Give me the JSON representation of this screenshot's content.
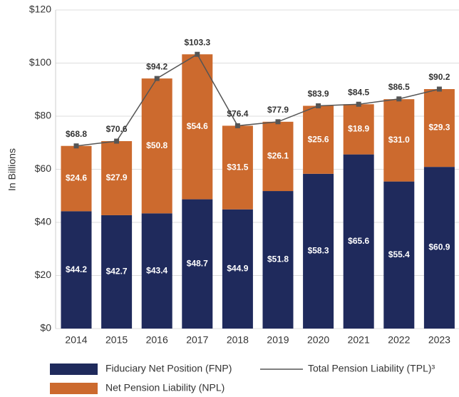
{
  "chart_data": {
    "type": "bar",
    "stacked": true,
    "y_label": "In Billions",
    "categories": [
      "2014",
      "2015",
      "2016",
      "2017",
      "2018",
      "2019",
      "2020",
      "2021",
      "2022",
      "2023"
    ],
    "ylim": [
      0,
      120
    ],
    "yticks": [
      {
        "value": 0,
        "label": "$0"
      },
      {
        "value": 20,
        "label": "$20"
      },
      {
        "value": 40,
        "label": "$40"
      },
      {
        "value": 60,
        "label": "$60"
      },
      {
        "value": 80,
        "label": "$80"
      },
      {
        "value": 100,
        "label": "$100"
      },
      {
        "value": 120,
        "label": "$120"
      }
    ],
    "grid": true,
    "series": [
      {
        "name": "Fiduciary Net Position (FNP)",
        "color": "#1f2a5c",
        "type": "bar",
        "values": [
          44.2,
          42.7,
          43.4,
          48.7,
          44.9,
          51.8,
          58.3,
          65.6,
          55.4,
          60.9
        ],
        "value_labels": [
          "$44.2",
          "$42.7",
          "$43.4",
          "$48.7",
          "$44.9",
          "$51.8",
          "$58.3",
          "$65.6",
          "$55.4",
          "$60.9"
        ]
      },
      {
        "name": "Net Pension Liability (NPL)",
        "color": "#cc6a2e",
        "type": "bar",
        "values": [
          24.6,
          27.9,
          50.8,
          54.6,
          31.5,
          26.1,
          25.6,
          18.9,
          31.0,
          29.3
        ],
        "value_labels": [
          "$24.6",
          "$27.9",
          "$50.8",
          "$54.6",
          "$31.5",
          "$26.1",
          "$25.6",
          "$18.9",
          "$31.0",
          "$29.3"
        ]
      },
      {
        "name": "Total Pension Liability (TPL)³",
        "color": "#555555",
        "type": "line",
        "values": [
          68.8,
          70.6,
          94.2,
          103.3,
          76.4,
          77.9,
          83.9,
          84.5,
          86.5,
          90.2
        ],
        "value_labels": [
          "$68.8",
          "$70.6",
          "$94.2",
          "$103.3",
          "$76.4",
          "$77.9",
          "$83.9",
          "$84.5",
          "$86.5",
          "$90.2"
        ]
      }
    ]
  }
}
